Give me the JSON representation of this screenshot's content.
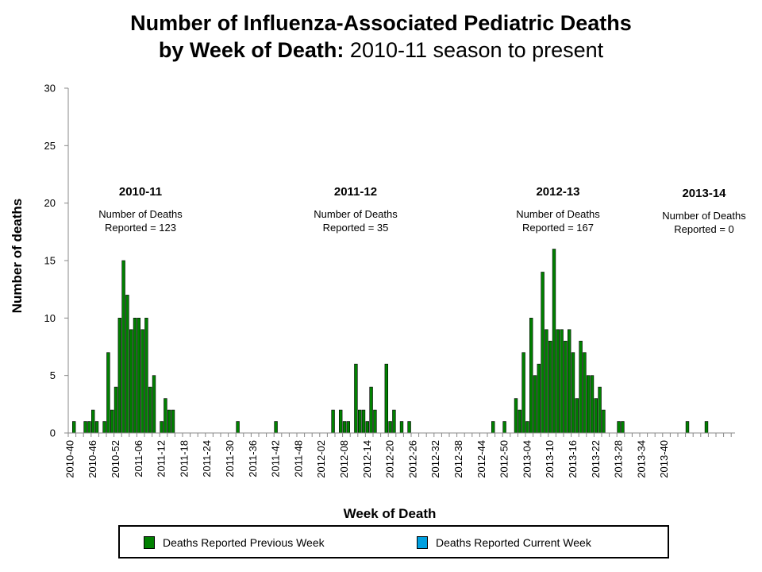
{
  "title": {
    "bold": "Number of Influenza-Associated Pediatric Deaths",
    "bold2": "by Week of Death:",
    "rest": "2010-11 season to present"
  },
  "chart_data": {
    "type": "bar",
    "title": "Number of Influenza-Associated Pediatric Deaths by Week of Death: 2010-11 season to present",
    "xlabel": "Week of Death",
    "ylabel": "Number of deaths",
    "ylim": [
      0,
      30
    ],
    "yticks": [
      0,
      5,
      10,
      15,
      20,
      25,
      30
    ],
    "grid": false,
    "legend_position": "bottom",
    "start_week": "2010-40",
    "tick_labels": [
      "2010-40",
      "2010-46",
      "2010-52",
      "2011-06",
      "2011-12",
      "2011-18",
      "2011-24",
      "2011-30",
      "2011-36",
      "2011-42",
      "2011-48",
      "2012-02",
      "2012-08",
      "2012-14",
      "2012-20",
      "2012-26",
      "2012-32",
      "2012-38",
      "2012-44",
      "2012-50",
      "2013-04",
      "2013-10",
      "2013-16",
      "2013-22",
      "2013-28",
      "2013-34",
      "2013-40"
    ],
    "series": [
      {
        "name": "Deaths Reported Previous Week",
        "color": "#008000",
        "values": [
          0,
          1,
          0,
          0,
          1,
          1,
          2,
          1,
          0,
          1,
          7,
          2,
          4,
          10,
          15,
          12,
          9,
          10,
          10,
          9,
          10,
          4,
          5,
          0,
          1,
          3,
          2,
          2,
          0,
          0,
          0,
          0,
          0,
          0,
          0,
          0,
          0,
          0,
          0,
          0,
          0,
          0,
          0,
          0,
          1,
          0,
          0,
          0,
          0,
          0,
          0,
          0,
          0,
          0,
          1,
          0,
          0,
          0,
          0,
          0,
          0,
          0,
          0,
          0,
          0,
          0,
          0,
          0,
          0,
          2,
          0,
          2,
          1,
          1,
          0,
          6,
          2,
          2,
          1,
          4,
          2,
          0,
          0,
          6,
          1,
          2,
          0,
          1,
          0,
          1,
          0,
          0,
          0,
          0,
          0,
          0,
          0,
          0,
          0,
          0,
          0,
          0,
          0,
          0,
          0,
          0,
          0,
          0,
          0,
          0,
          0,
          1,
          0,
          0,
          1,
          0,
          0,
          3,
          2,
          7,
          1,
          10,
          5,
          6,
          14,
          9,
          8,
          16,
          9,
          9,
          8,
          9,
          7,
          3,
          8,
          7,
          5,
          5,
          3,
          4,
          2,
          0,
          0,
          0,
          1,
          1,
          0,
          0,
          0,
          0,
          0,
          0,
          0,
          0,
          0,
          0,
          0,
          0,
          0,
          0,
          0,
          0,
          1,
          0,
          0,
          0,
          0,
          1,
          0,
          0,
          0,
          0,
          0,
          0,
          0
        ]
      },
      {
        "name": "Deaths Reported Current Week",
        "color": "#00a0e0",
        "values": []
      }
    ],
    "seasons": [
      {
        "label": "2010-11",
        "note_line1": "Number of Deaths",
        "note_line2": "Reported = 123"
      },
      {
        "label": "2011-12",
        "note_line1": "Number of Deaths",
        "note_line2": "Reported = 35"
      },
      {
        "label": "2012-13",
        "note_line1": "Number of Deaths",
        "note_line2": "Reported = 167"
      },
      {
        "label": "2013-14",
        "note_line1": "Number of Deaths",
        "note_line2": "Reported = 0"
      }
    ]
  },
  "legend": {
    "previous": {
      "label": "Deaths Reported Previous Week",
      "color": "#008000"
    },
    "current": {
      "label": "Deaths Reported Current Week",
      "color": "#00a0e0"
    }
  }
}
